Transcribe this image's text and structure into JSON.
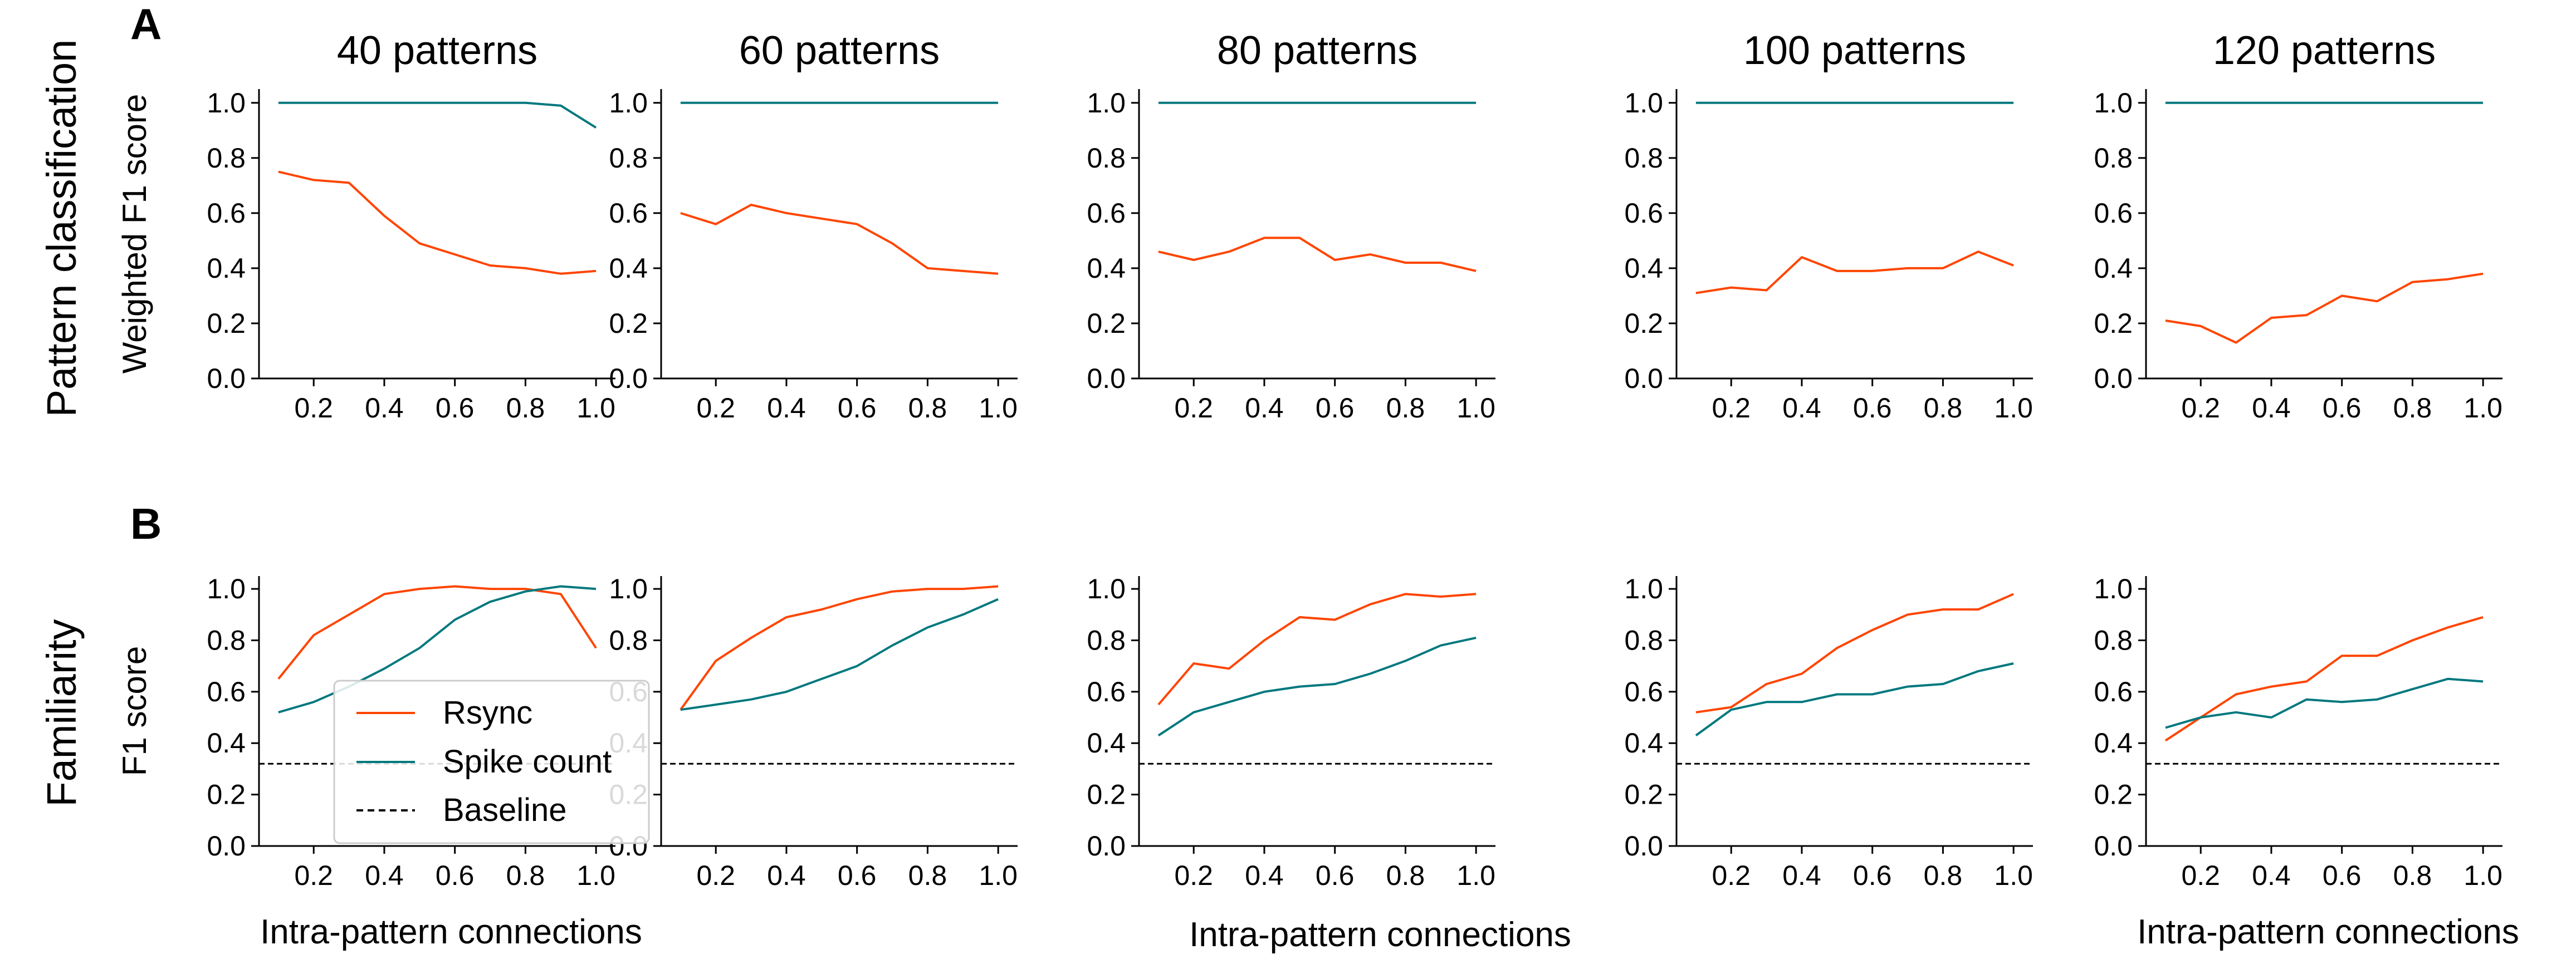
{
  "colors": {
    "rsync": "#ff4500",
    "spike_count": "#00787e",
    "baseline": "#000000",
    "legend_border": "#cccccc"
  },
  "labels": {
    "panel_letters": [
      "A",
      "B"
    ],
    "row_labels": [
      "Pattern classification",
      "Familiarity"
    ],
    "x_axis_label": "Intra-pattern connections"
  },
  "legend": {
    "items": [
      "Rsync",
      "Spike count",
      "Baseline"
    ]
  },
  "chart_data": [
    {
      "type": "line",
      "title": "40 patterns",
      "ylabel": "Weighted F1 score",
      "xlabel": "",
      "x": [
        0.1,
        0.2,
        0.3,
        0.4,
        0.5,
        0.6,
        0.7,
        0.8,
        0.9,
        1.0
      ],
      "xticks": [
        "0.2",
        "0.4",
        "0.6",
        "0.8",
        "1.0"
      ],
      "yticks": [
        "0.0",
        "0.2",
        "0.4",
        "0.6",
        "0.8",
        "1.0"
      ],
      "ylim": [
        0,
        1.05
      ],
      "series": [
        {
          "name": "Rsync",
          "values": [
            0.75,
            0.72,
            0.71,
            0.59,
            0.49,
            0.45,
            0.41,
            0.4,
            0.38,
            0.39
          ]
        },
        {
          "name": "Spike count",
          "values": [
            1.0,
            1.0,
            1.0,
            1.0,
            1.0,
            1.0,
            1.0,
            1.0,
            0.99,
            0.91
          ]
        }
      ]
    },
    {
      "type": "line",
      "title": "60 patterns",
      "ylabel": "",
      "xlabel": "",
      "x": [
        0.1,
        0.2,
        0.3,
        0.4,
        0.5,
        0.6,
        0.7,
        0.8,
        0.9,
        1.0
      ],
      "xticks": [
        "0.2",
        "0.4",
        "0.6",
        "0.8",
        "1.0"
      ],
      "yticks": [
        "0.0",
        "0.2",
        "0.4",
        "0.6",
        "0.8",
        "1.0"
      ],
      "ylim": [
        0,
        1.05
      ],
      "series": [
        {
          "name": "Rsync",
          "values": [
            0.6,
            0.56,
            0.63,
            0.6,
            0.58,
            0.56,
            0.49,
            0.4,
            0.39,
            0.38
          ]
        },
        {
          "name": "Spike count",
          "values": [
            1.0,
            1.0,
            1.0,
            1.0,
            1.0,
            1.0,
            1.0,
            1.0,
            1.0,
            1.0
          ]
        }
      ]
    },
    {
      "type": "line",
      "title": "80 patterns",
      "ylabel": "",
      "xlabel": "Intra-pattern connections",
      "x": [
        0.1,
        0.2,
        0.3,
        0.4,
        0.5,
        0.6,
        0.7,
        0.8,
        0.9,
        1.0
      ],
      "xticks": [
        "0.2",
        "0.4",
        "0.6",
        "0.8",
        "1.0"
      ],
      "yticks": [
        "0.0",
        "0.2",
        "0.4",
        "0.6",
        "0.8",
        "1.0"
      ],
      "ylim": [
        0,
        1.05
      ],
      "series": [
        {
          "name": "Rsync",
          "values": [
            0.46,
            0.43,
            0.46,
            0.51,
            0.51,
            0.43,
            0.45,
            0.42,
            0.42,
            0.39
          ]
        },
        {
          "name": "Spike count",
          "values": [
            1.0,
            1.0,
            1.0,
            1.0,
            1.0,
            1.0,
            1.0,
            1.0,
            1.0,
            1.0
          ]
        }
      ]
    },
    {
      "type": "line",
      "title": "100 patterns",
      "ylabel": "",
      "xlabel": "",
      "x": [
        0.1,
        0.2,
        0.3,
        0.4,
        0.5,
        0.6,
        0.7,
        0.8,
        0.9,
        1.0
      ],
      "xticks": [
        "0.2",
        "0.4",
        "0.6",
        "0.8",
        "1.0"
      ],
      "yticks": [
        "0.0",
        "0.2",
        "0.4",
        "0.6",
        "0.8",
        "1.0"
      ],
      "ylim": [
        0,
        1.05
      ],
      "series": [
        {
          "name": "Rsync",
          "values": [
            0.31,
            0.33,
            0.32,
            0.44,
            0.39,
            0.39,
            0.4,
            0.4,
            0.46,
            0.41
          ]
        },
        {
          "name": "Spike count",
          "values": [
            1.0,
            1.0,
            1.0,
            1.0,
            1.0,
            1.0,
            1.0,
            1.0,
            1.0,
            1.0
          ]
        }
      ]
    },
    {
      "type": "line",
      "title": "120 patterns",
      "ylabel": "",
      "xlabel": "Intra-pattern connections",
      "x": [
        0.1,
        0.2,
        0.3,
        0.4,
        0.5,
        0.6,
        0.7,
        0.8,
        0.9,
        1.0
      ],
      "xticks": [
        "0.2",
        "0.4",
        "0.6",
        "0.8",
        "1.0"
      ],
      "yticks": [
        "0.0",
        "0.2",
        "0.4",
        "0.6",
        "0.8",
        "1.0"
      ],
      "ylim": [
        0,
        1.05
      ],
      "series": [
        {
          "name": "Rsync",
          "values": [
            0.21,
            0.19,
            0.13,
            0.22,
            0.23,
            0.3,
            0.28,
            0.35,
            0.36,
            0.38
          ]
        },
        {
          "name": "Spike count",
          "values": [
            1.0,
            1.0,
            1.0,
            1.0,
            1.0,
            1.0,
            1.0,
            1.0,
            1.0,
            1.0
          ]
        }
      ]
    },
    {
      "type": "line",
      "title": "",
      "ylabel": "F1 score",
      "xlabel": "Intra-pattern connections",
      "x": [
        0.1,
        0.2,
        0.3,
        0.4,
        0.5,
        0.6,
        0.7,
        0.8,
        0.9,
        1.0
      ],
      "xticks": [
        "0.2",
        "0.4",
        "0.6",
        "0.8",
        "1.0"
      ],
      "yticks": [
        "0.0",
        "0.2",
        "0.4",
        "0.6",
        "0.8",
        "1.0"
      ],
      "ylim": [
        0,
        1.05
      ],
      "series": [
        {
          "name": "Rsync",
          "values": [
            0.65,
            0.82,
            0.9,
            0.98,
            1.0,
            1.01,
            1.0,
            1.0,
            0.98,
            0.77
          ]
        },
        {
          "name": "Spike count",
          "values": [
            0.52,
            0.56,
            0.62,
            0.69,
            0.77,
            0.88,
            0.95,
            0.99,
            1.01,
            1.0
          ]
        }
      ],
      "baseline": 0.32
    },
    {
      "type": "line",
      "title": "",
      "ylabel": "",
      "xlabel": "",
      "x": [
        0.1,
        0.2,
        0.3,
        0.4,
        0.5,
        0.6,
        0.7,
        0.8,
        0.9,
        1.0
      ],
      "xticks": [
        "0.2",
        "0.4",
        "0.6",
        "0.8",
        "1.0"
      ],
      "yticks": [
        "0.0",
        "0.2",
        "0.4",
        "0.6",
        "0.8",
        "1.0"
      ],
      "ylim": [
        0,
        1.05
      ],
      "series": [
        {
          "name": "Rsync",
          "values": [
            0.53,
            0.72,
            0.81,
            0.89,
            0.92,
            0.96,
            0.99,
            1.0,
            1.0,
            1.01
          ]
        },
        {
          "name": "Spike count",
          "values": [
            0.53,
            0.55,
            0.57,
            0.6,
            0.65,
            0.7,
            0.78,
            0.85,
            0.9,
            0.96
          ]
        }
      ],
      "baseline": 0.32
    },
    {
      "type": "line",
      "title": "",
      "ylabel": "",
      "xlabel": "",
      "x": [
        0.1,
        0.2,
        0.3,
        0.4,
        0.5,
        0.6,
        0.7,
        0.8,
        0.9,
        1.0
      ],
      "xticks": [
        "0.2",
        "0.4",
        "0.6",
        "0.8",
        "1.0"
      ],
      "yticks": [
        "0.0",
        "0.2",
        "0.4",
        "0.6",
        "0.8",
        "1.0"
      ],
      "ylim": [
        0,
        1.05
      ],
      "series": [
        {
          "name": "Rsync",
          "values": [
            0.55,
            0.71,
            0.69,
            0.8,
            0.89,
            0.88,
            0.94,
            0.98,
            0.97,
            0.98
          ]
        },
        {
          "name": "Spike count",
          "values": [
            0.43,
            0.52,
            0.56,
            0.6,
            0.62,
            0.63,
            0.67,
            0.72,
            0.78,
            0.81
          ]
        }
      ],
      "baseline": 0.32
    },
    {
      "type": "line",
      "title": "",
      "ylabel": "",
      "xlabel": "",
      "x": [
        0.1,
        0.2,
        0.3,
        0.4,
        0.5,
        0.6,
        0.7,
        0.8,
        0.9,
        1.0
      ],
      "xticks": [
        "0.2",
        "0.4",
        "0.6",
        "0.8",
        "1.0"
      ],
      "yticks": [
        "0.0",
        "0.2",
        "0.4",
        "0.6",
        "0.8",
        "1.0"
      ],
      "ylim": [
        0,
        1.05
      ],
      "series": [
        {
          "name": "Rsync",
          "values": [
            0.52,
            0.54,
            0.63,
            0.67,
            0.77,
            0.84,
            0.9,
            0.92,
            0.92,
            0.98
          ]
        },
        {
          "name": "Spike count",
          "values": [
            0.43,
            0.53,
            0.56,
            0.56,
            0.59,
            0.59,
            0.62,
            0.63,
            0.68,
            0.71
          ]
        }
      ],
      "baseline": 0.32
    },
    {
      "type": "line",
      "title": "",
      "ylabel": "",
      "xlabel": "",
      "x": [
        0.1,
        0.2,
        0.3,
        0.4,
        0.5,
        0.6,
        0.7,
        0.8,
        0.9,
        1.0
      ],
      "xticks": [
        "0.2",
        "0.4",
        "0.6",
        "0.8",
        "1.0"
      ],
      "yticks": [
        "0.0",
        "0.2",
        "0.4",
        "0.6",
        "0.8",
        "1.0"
      ],
      "ylim": [
        0,
        1.05
      ],
      "series": [
        {
          "name": "Rsync",
          "values": [
            0.41,
            0.5,
            0.59,
            0.62,
            0.64,
            0.74,
            0.74,
            0.8,
            0.85,
            0.89
          ]
        },
        {
          "name": "Spike count",
          "values": [
            0.46,
            0.5,
            0.52,
            0.5,
            0.57,
            0.56,
            0.57,
            0.61,
            0.65,
            0.64
          ]
        }
      ],
      "baseline": 0.32
    }
  ]
}
